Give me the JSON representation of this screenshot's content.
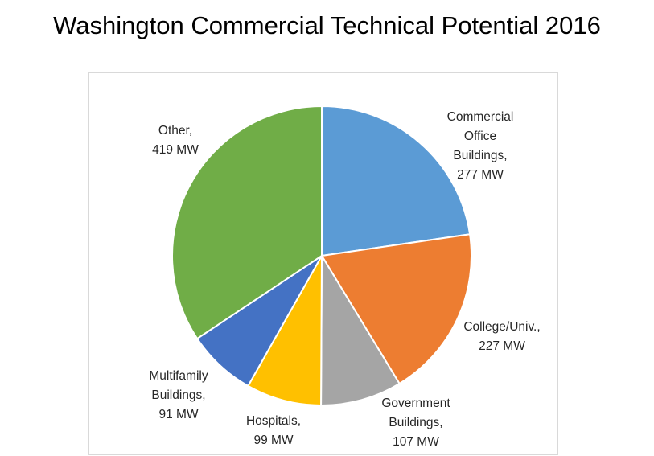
{
  "chart_data": {
    "type": "pie",
    "title": "Washington Commercial Technical Potential 2016",
    "slices": [
      {
        "label_lines": [
          "Commercial",
          "Office",
          "Buildings,",
          "277 MW"
        ],
        "name": "Commercial Office Buildings",
        "value": 277,
        "color": "#5B9BD5"
      },
      {
        "label_lines": [
          "College/Univ.,",
          "227 MW"
        ],
        "name": "College/Univ.",
        "value": 227,
        "color": "#ED7D31"
      },
      {
        "label_lines": [
          "Government",
          "Buildings,",
          "107 MW"
        ],
        "name": "Government Buildings",
        "value": 107,
        "color": "#A5A5A5"
      },
      {
        "label_lines": [
          "Hospitals,",
          "99 MW"
        ],
        "name": "Hospitals",
        "value": 99,
        "color": "#FFC000"
      },
      {
        "label_lines": [
          "Multifamily",
          "Buildings,",
          "91 MW"
        ],
        "name": "Multifamily Buildings",
        "value": 91,
        "color": "#4472C4"
      },
      {
        "label_lines": [
          "Other,",
          "419 MW"
        ],
        "name": "Other",
        "value": 419,
        "color": "#70AD47"
      }
    ],
    "unit": "MW",
    "start_angle": "12 o'clock",
    "direction": "clockwise",
    "legend": "none",
    "data_labels": "outside"
  }
}
